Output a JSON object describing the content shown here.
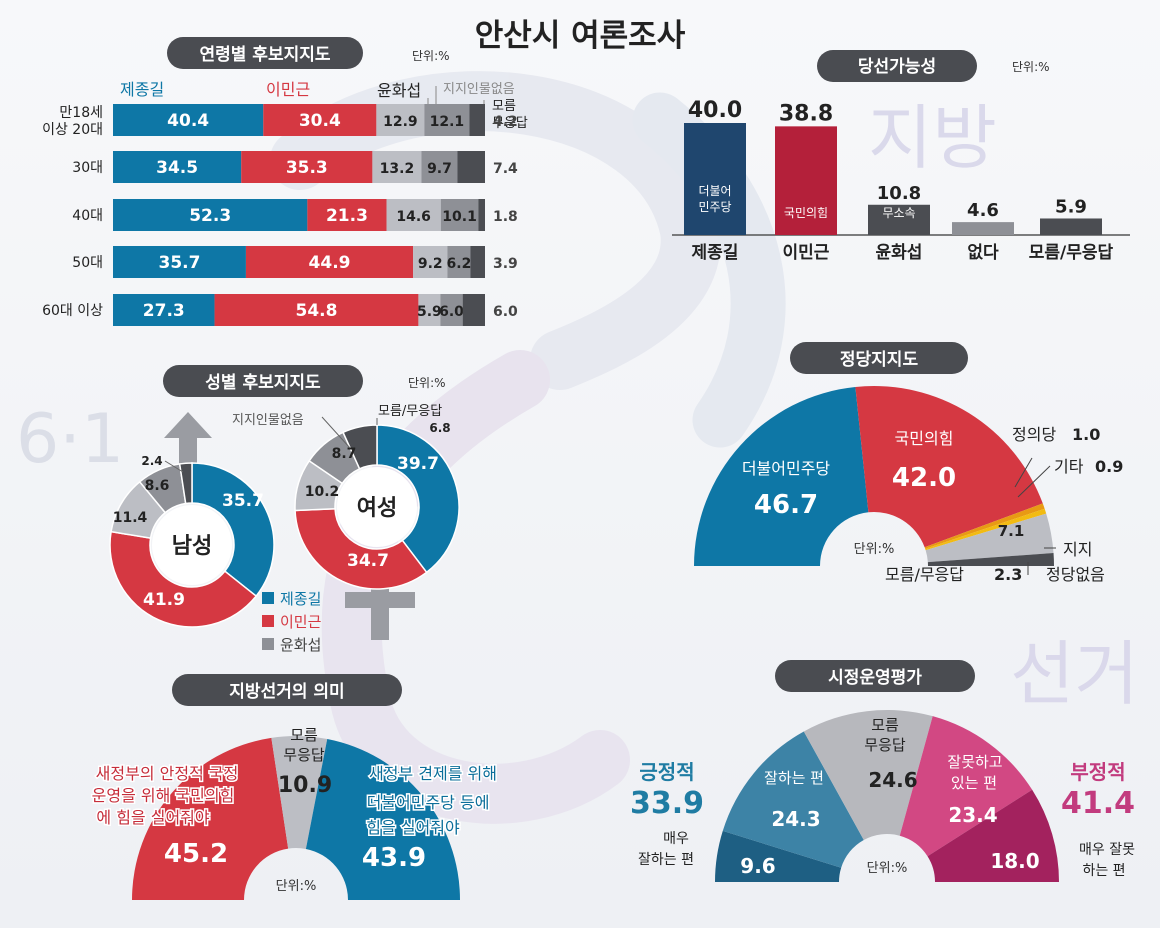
{
  "title": "안산시 여론조사",
  "watermark": {
    "left": "6·1",
    "top_right": "지방",
    "bottom_right": "선거"
  },
  "colors": {
    "blue": "#0e77a6",
    "red": "#d53842",
    "gray": "#8e9096",
    "lightgray": "#bcbec4",
    "dark": "#4b4d52",
    "navy": "#1f466e",
    "crimson": "#b4203a",
    "pink": "#d24883",
    "magenta": "#a3225e",
    "pill": "#4a4c51",
    "yellow": "#f2bb12",
    "orange": "#e89a14"
  },
  "unit": "단위:%",
  "age": {
    "title": "연령별 후보지지도",
    "unit": "단위:%",
    "legend": {
      "c1": "제종길",
      "c2": "이민근",
      "c3": "윤화섭",
      "c4": "지지인물없음",
      "c5a": "모름",
      "c5b": "무응답"
    },
    "rows": [
      {
        "label1": "만18세",
        "label2": "이상 20대",
        "values": [
          40.4,
          30.4,
          12.9,
          12.1,
          4.2
        ],
        "labels": [
          "40.4",
          "30.4",
          "12.9",
          "12.1",
          "4.2"
        ]
      },
      {
        "label1": "30대",
        "label2": "",
        "values": [
          34.5,
          35.3,
          13.2,
          9.7,
          7.4
        ],
        "labels": [
          "34.5",
          "35.3",
          "13.2",
          "9.7",
          "7.4"
        ]
      },
      {
        "label1": "40대",
        "label2": "",
        "values": [
          52.3,
          21.3,
          14.6,
          10.1,
          1.8
        ],
        "labels": [
          "52.3",
          "21.3",
          "14.6",
          "10.1",
          "1.8"
        ]
      },
      {
        "label1": "50대",
        "label2": "",
        "values": [
          35.7,
          44.9,
          9.2,
          6.2,
          3.9
        ],
        "labels": [
          "35.7",
          "44.9",
          "9.2",
          "6.2",
          "3.9"
        ]
      },
      {
        "label1": "60대 이상",
        "label2": "",
        "values": [
          27.3,
          54.8,
          5.9,
          6.0,
          6.0
        ],
        "labels": [
          "27.3",
          "54.8",
          "5.9",
          "6.0",
          "6.0"
        ]
      }
    ]
  },
  "win": {
    "title": "당선가능성",
    "unit": "단위:%",
    "bars": [
      {
        "name": "제종길",
        "value": 40.0,
        "label": "40.0",
        "inner1": "더불어",
        "inner2": "민주당"
      },
      {
        "name": "이민근",
        "value": 38.8,
        "label": "38.8",
        "inner1": "국민의힘",
        "inner2": ""
      },
      {
        "name": "윤화섭",
        "value": 10.8,
        "label": "10.8",
        "inner1": "무소속",
        "inner2": ""
      },
      {
        "name": "없다",
        "value": 4.6,
        "label": "4.6",
        "inner1": "",
        "inner2": ""
      },
      {
        "name": "모름/무응답",
        "value": 5.9,
        "label": "5.9",
        "inner1": "",
        "inner2": ""
      }
    ]
  },
  "gender": {
    "title": "성별 후보지지도",
    "unit": "단위:%",
    "male": {
      "center": "남성",
      "values": [
        35.7,
        41.9,
        11.4,
        8.6,
        2.4
      ],
      "labels": [
        "35.7",
        "41.9",
        "11.4",
        "8.6",
        "2.4"
      ]
    },
    "female": {
      "center": "여성",
      "values": [
        39.7,
        34.7,
        10.2,
        8.7,
        6.8
      ],
      "labels": [
        "39.7",
        "34.7",
        "10.2",
        "8.7",
        "6.8"
      ]
    },
    "callout_none": "지지인물없음",
    "callout_unknown": "모름/무응답",
    "legend": [
      "제종길",
      "이민근",
      "윤화섭"
    ]
  },
  "party": {
    "title": "정당지지도",
    "unit": "단위:%",
    "slices": [
      {
        "name": "더불어민주당",
        "value": 46.7,
        "label": "46.7"
      },
      {
        "name": "국민의힘",
        "value": 42.0,
        "label": "42.0"
      },
      {
        "name": "정의당",
        "value": 1.0,
        "label": "1.0"
      },
      {
        "name": "기타",
        "value": 0.9,
        "label": "0.9"
      },
      {
        "name": "지지정당없음",
        "value": 7.1,
        "label": "7.1"
      },
      {
        "name": "모름/무응답",
        "value": 2.3,
        "label": "2.3"
      }
    ],
    "none_line1": "지지",
    "none_line2": "정당없음"
  },
  "meaning": {
    "title": "지방선거의 의미",
    "unit": "단위:%",
    "red_text": [
      "새정부의 안정적 국정",
      "운영을 위해 국민의힘",
      "에 힘을 실어줘야"
    ],
    "blue_text": [
      "새정부 견제를 위해",
      "더불어민주당 등에",
      "힘을 실어줘야"
    ],
    "gray_text": [
      "모름",
      "무응답"
    ],
    "values": [
      45.2,
      10.9,
      43.9
    ],
    "labels": [
      "45.2",
      "10.9",
      "43.9"
    ]
  },
  "city": {
    "title": "시정운영평가",
    "unit": "단위:%",
    "values": [
      9.6,
      24.3,
      24.6,
      23.4,
      18.0
    ],
    "labels": [
      "9.6",
      "24.3",
      "24.6",
      "23.4",
      "18.0"
    ],
    "seg_text": {
      "good": "잘하는 편",
      "unknown1": "모름",
      "unknown2": "무응답",
      "bad1": "잘못하고",
      "bad2": "있는 편"
    },
    "very_good": [
      "매우",
      "잘하는 편"
    ],
    "very_bad": [
      "매우 잘못",
      "하는 편"
    ],
    "positive": {
      "label": "긍정적",
      "value": "33.9"
    },
    "negative": {
      "label": "부정적",
      "value": "41.4"
    }
  }
}
